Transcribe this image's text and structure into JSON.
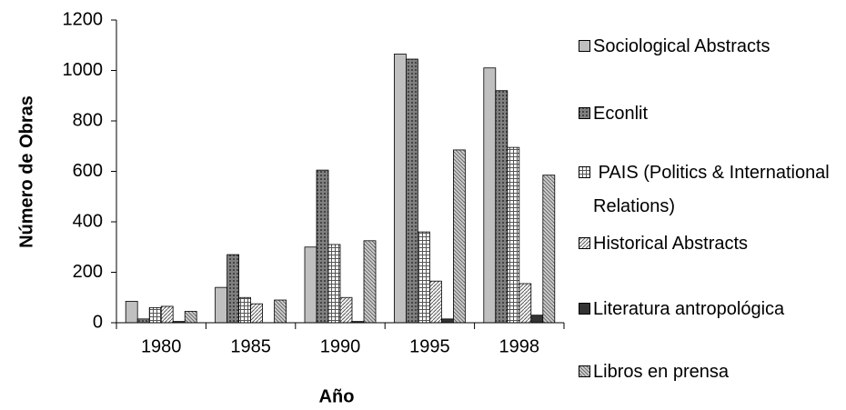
{
  "chart_data": {
    "type": "bar",
    "x_label": "Año",
    "y_label": "Número de Obras",
    "categories": [
      "1980",
      "1985",
      "1990",
      "1995",
      "1998"
    ],
    "series": [
      {
        "name": "Sociological Abstracts",
        "color": "#c0c0c0",
        "values": [
          85,
          140,
          300,
          1065,
          1010
        ]
      },
      {
        "name": "Econlit",
        "color": "#808080",
        "values": [
          15,
          270,
          605,
          1045,
          920
        ]
      },
      {
        "name": " PAIS (Politics & International Relations)",
        "color": "#ffffff",
        "values": [
          60,
          100,
          310,
          360,
          695
        ]
      },
      {
        "name": "Historical Abstracts",
        "color": "#f4f4f4",
        "values": [
          65,
          75,
          100,
          165,
          155
        ]
      },
      {
        "name": "Literatura antropológica",
        "color": "#333333",
        "values": [
          5,
          0,
          5,
          15,
          30
        ]
      },
      {
        "name": "Libros en prensa",
        "color": "#d0d0d0",
        "values": [
          45,
          90,
          325,
          685,
          585
        ]
      }
    ],
    "ylim": [
      0,
      1200
    ],
    "yticks": [
      0,
      200,
      400,
      600,
      800,
      1000,
      1200
    ],
    "legend": "right"
  }
}
